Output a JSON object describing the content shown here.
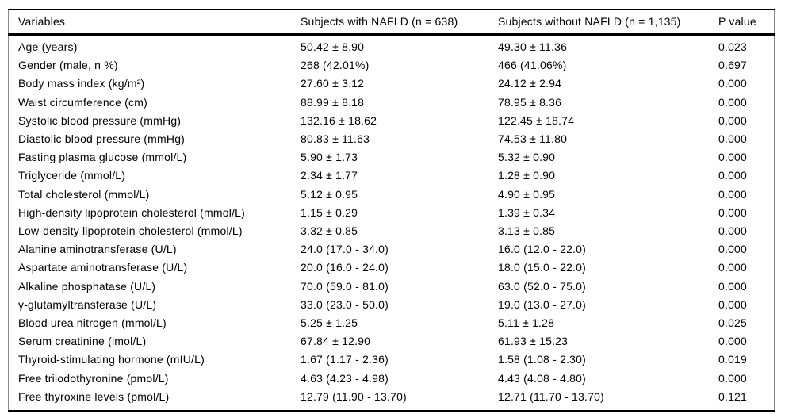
{
  "table": {
    "columns": [
      "Variables",
      "Subjects with NAFLD (n = 638)",
      "Subjects without NAFLD (n = 1,135)",
      "P value"
    ],
    "rows": [
      {
        "variable": "Age (years)",
        "nafld": "50.42 ± 8.90",
        "non_nafld": "49.30 ± 11.36",
        "p_value": "0.023"
      },
      {
        "variable": "Gender (male, n %)",
        "nafld": "268 (42.01%)",
        "non_nafld": "466 (41.06%)",
        "p_value": "0.697"
      },
      {
        "variable": "Body mass index (kg/m²)",
        "nafld": "27.60 ± 3.12",
        "non_nafld": "24.12 ± 2.94",
        "p_value": "0.000"
      },
      {
        "variable": "Waist circumference (cm)",
        "nafld": "88.99 ± 8.18",
        "non_nafld": "78.95 ± 8.36",
        "p_value": "0.000"
      },
      {
        "variable": "Systolic blood pressure (mmHg)",
        "nafld": "132.16 ± 18.62",
        "non_nafld": "122.45 ± 18.74",
        "p_value": "0.000"
      },
      {
        "variable": "Diastolic blood pressure (mmHg)",
        "nafld": "80.83 ± 11.63",
        "non_nafld": "74.53 ± 11.80",
        "p_value": "0.000"
      },
      {
        "variable": "Fasting plasma glucose (mmol/L)",
        "nafld": "5.90 ± 1.73",
        "non_nafld": "5.32 ± 0.90",
        "p_value": "0.000"
      },
      {
        "variable": "Triglyceride (mmol/L)",
        "nafld": "2.34 ± 1.77",
        "non_nafld": "1.28 ± 0.90",
        "p_value": "0.000"
      },
      {
        "variable": "Total cholesterol (mmol/L)",
        "nafld": "5.12 ± 0.95",
        "non_nafld": "4.90 ± 0.95",
        "p_value": "0.000"
      },
      {
        "variable": "High-density lipoprotein cholesterol (mmol/L)",
        "nafld": "1.15 ± 0.29",
        "non_nafld": "1.39 ± 0.34",
        "p_value": "0.000"
      },
      {
        "variable": "Low-density lipoprotein cholesterol (mmol/L)",
        "nafld": "3.32 ± 0.85",
        "non_nafld": "3.13 ± 0.85",
        "p_value": "0.000"
      },
      {
        "variable": "Alanine aminotransferase (U/L)",
        "nafld": "24.0 (17.0 - 34.0)",
        "non_nafld": "16.0 (12.0 - 22.0)",
        "p_value": "0.000"
      },
      {
        "variable": "Aspartate aminotransferase (U/L)",
        "nafld": "20.0 (16.0 - 24.0)",
        "non_nafld": "18.0 (15.0 - 22.0)",
        "p_value": "0.000"
      },
      {
        "variable": "Alkaline phosphatase (U/L)",
        "nafld": "70.0 (59.0 - 81.0)",
        "non_nafld": "63.0 (52.0 - 75.0)",
        "p_value": "0.000"
      },
      {
        "variable": "γ-glutamyltransferase (U/L)",
        "nafld": "33.0 (23.0 - 50.0)",
        "non_nafld": "19.0 (13.0 - 27.0)",
        "p_value": "0.000"
      },
      {
        "variable": "Blood urea nitrogen (mmol/L)",
        "nafld": "5.25 ± 1.25",
        "non_nafld": "5.11 ± 1.28",
        "p_value": "0.025"
      },
      {
        "variable": "Serum creatinine (imol/L)",
        "nafld": "67.84 ± 12.90",
        "non_nafld": "61.93 ± 15.23",
        "p_value": "0.000"
      },
      {
        "variable": "Thyroid-stimulating hormone (mIU/L)",
        "nafld": "1.67 (1.17 - 2.36)",
        "non_nafld": "1.58 (1.08 - 2.30)",
        "p_value": "0.019"
      },
      {
        "variable": "Free triiodothyronine (pmol/L)",
        "nafld": "4.63 (4.23 - 4.98)",
        "non_nafld": "4.43 (4.08 - 4.80)",
        "p_value": "0.000"
      },
      {
        "variable": "Free thyroxine levels (pmol/L)",
        "nafld": "12.79 (11.90 - 13.70)",
        "non_nafld": "12.71 (11.70 - 13.70)",
        "p_value": "0.121"
      }
    ]
  }
}
